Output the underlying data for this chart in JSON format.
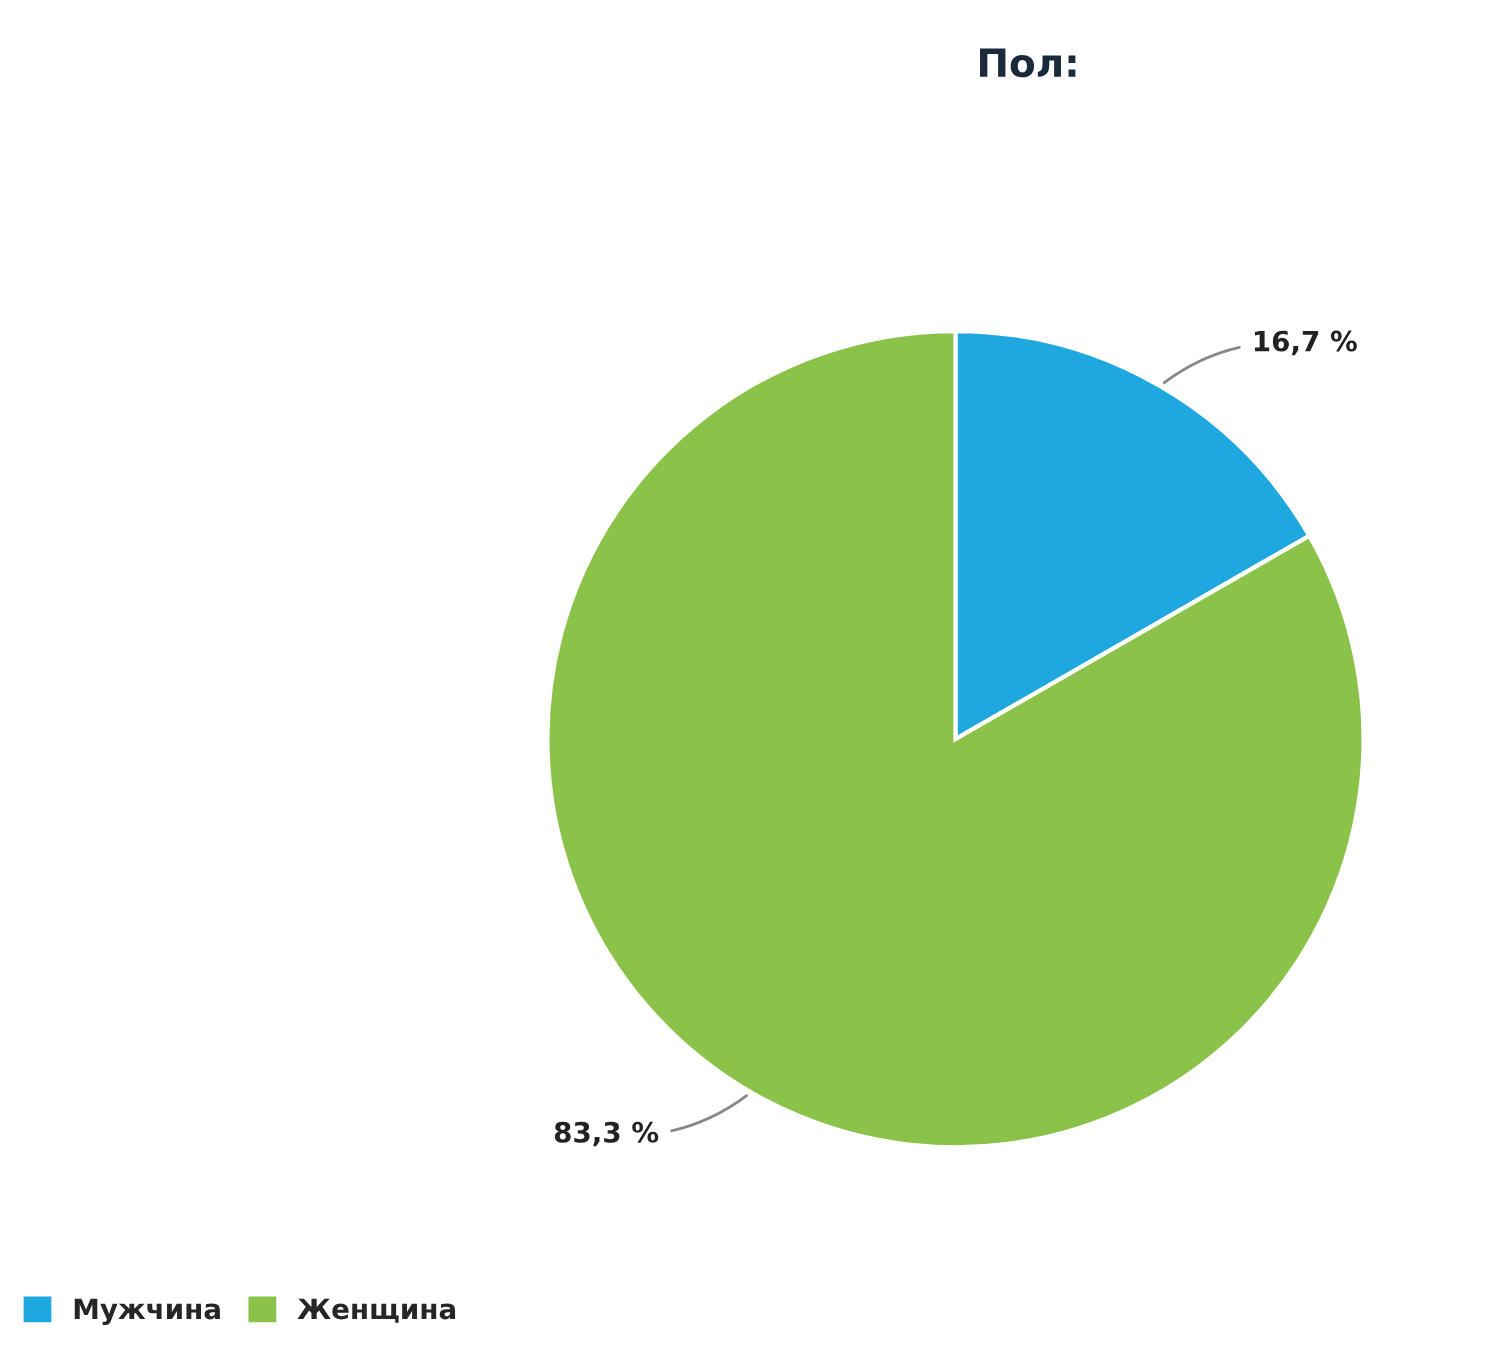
{
  "chart_data": {
    "type": "pie",
    "title": "Пол:",
    "categories": [
      "Мужчина",
      "Женщина"
    ],
    "values": [
      16.7,
      83.3
    ],
    "value_labels": [
      "16,7 %",
      "83,3 %"
    ],
    "colors": [
      "#1fa8e0",
      "#8bc34a"
    ],
    "legend": "bottom left"
  }
}
